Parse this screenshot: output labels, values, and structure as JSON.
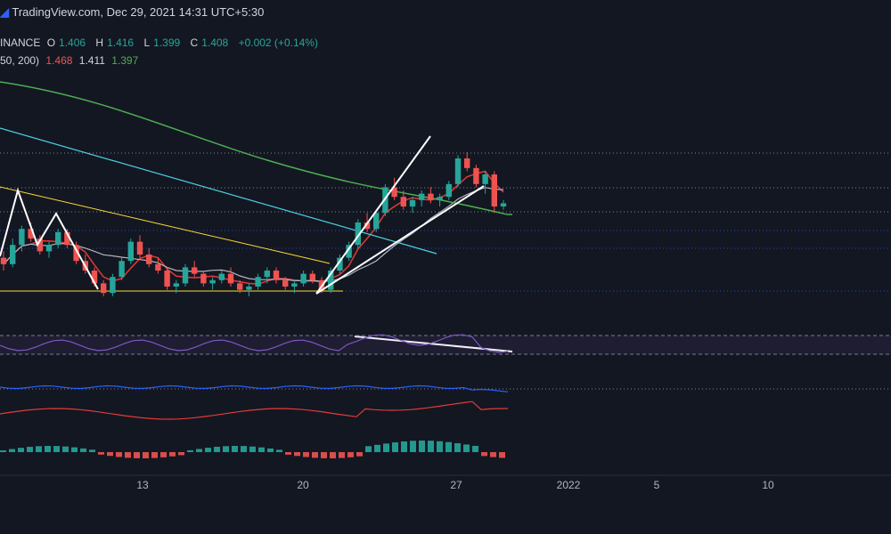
{
  "header": {
    "brand": "TradingView.com,",
    "timestamp": "Dec 29, 2021 14:31 UTC+5:30"
  },
  "legend": {
    "symbol": "INANCE",
    "open_label": "O",
    "open": "1.406",
    "high_label": "H",
    "high": "1.416",
    "low_label": "L",
    "low": "1.399",
    "close_label": "C",
    "close": "1.408",
    "change": "+0.002 (+0.14%)",
    "ma_label": "50, 200)",
    "ma1": "1.468",
    "ma2": "1.411",
    "ma3": "1.397"
  },
  "colors": {
    "bg": "#131722",
    "up": "#26a69a",
    "down": "#ef5350",
    "ma_fast": "#e53935",
    "ma_mid": "#b2b5be",
    "ma_slow": "#4caf50",
    "trend_cyan": "#4dd0e1",
    "trend_yellow": "#fdd835",
    "rsi": "#7e57c2",
    "blue_line": "#2962ff"
  },
  "chart_data": {
    "type": "candlestick",
    "x_ticks": [
      "13",
      "20",
      "27",
      "2022",
      "5",
      "10"
    ],
    "candles": [
      [
        1.24,
        1.26,
        1.2,
        1.22
      ],
      [
        1.22,
        1.3,
        1.21,
        1.28
      ],
      [
        1.28,
        1.34,
        1.26,
        1.33
      ],
      [
        1.33,
        1.35,
        1.29,
        1.3
      ],
      [
        1.3,
        1.31,
        1.25,
        1.26
      ],
      [
        1.26,
        1.29,
        1.24,
        1.28
      ],
      [
        1.28,
        1.33,
        1.27,
        1.32
      ],
      [
        1.32,
        1.33,
        1.27,
        1.28
      ],
      [
        1.28,
        1.29,
        1.22,
        1.23
      ],
      [
        1.23,
        1.25,
        1.19,
        1.2
      ],
      [
        1.2,
        1.21,
        1.15,
        1.16
      ],
      [
        1.16,
        1.17,
        1.12,
        1.13
      ],
      [
        1.13,
        1.19,
        1.12,
        1.18
      ],
      [
        1.18,
        1.24,
        1.17,
        1.23
      ],
      [
        1.23,
        1.3,
        1.22,
        1.29
      ],
      [
        1.29,
        1.31,
        1.24,
        1.25
      ],
      [
        1.25,
        1.27,
        1.21,
        1.22
      ],
      [
        1.22,
        1.24,
        1.19,
        1.2
      ],
      [
        1.2,
        1.21,
        1.14,
        1.15
      ],
      [
        1.15,
        1.17,
        1.13,
        1.16
      ],
      [
        1.16,
        1.22,
        1.15,
        1.21
      ],
      [
        1.21,
        1.23,
        1.18,
        1.19
      ],
      [
        1.19,
        1.2,
        1.15,
        1.16
      ],
      [
        1.16,
        1.18,
        1.14,
        1.17
      ],
      [
        1.17,
        1.2,
        1.16,
        1.19
      ],
      [
        1.19,
        1.21,
        1.15,
        1.16
      ],
      [
        1.16,
        1.17,
        1.13,
        1.14
      ],
      [
        1.14,
        1.16,
        1.12,
        1.15
      ],
      [
        1.15,
        1.19,
        1.14,
        1.18
      ],
      [
        1.18,
        1.21,
        1.16,
        1.2
      ],
      [
        1.2,
        1.21,
        1.16,
        1.17
      ],
      [
        1.17,
        1.18,
        1.14,
        1.15
      ],
      [
        1.15,
        1.17,
        1.13,
        1.16
      ],
      [
        1.16,
        1.2,
        1.15,
        1.19
      ],
      [
        1.19,
        1.2,
        1.16,
        1.17
      ],
      [
        1.17,
        1.18,
        1.13,
        1.14
      ],
      [
        1.14,
        1.21,
        1.13,
        1.2
      ],
      [
        1.2,
        1.25,
        1.19,
        1.24
      ],
      [
        1.24,
        1.29,
        1.23,
        1.28
      ],
      [
        1.28,
        1.36,
        1.27,
        1.35
      ],
      [
        1.35,
        1.38,
        1.32,
        1.33
      ],
      [
        1.33,
        1.39,
        1.32,
        1.38
      ],
      [
        1.38,
        1.47,
        1.37,
        1.46
      ],
      [
        1.46,
        1.49,
        1.42,
        1.43
      ],
      [
        1.43,
        1.45,
        1.39,
        1.4
      ],
      [
        1.4,
        1.43,
        1.38,
        1.42
      ],
      [
        1.42,
        1.45,
        1.4,
        1.44
      ],
      [
        1.44,
        1.46,
        1.41,
        1.42
      ],
      [
        1.42,
        1.44,
        1.4,
        1.43
      ],
      [
        1.43,
        1.48,
        1.42,
        1.47
      ],
      [
        1.47,
        1.56,
        1.46,
        1.55
      ],
      [
        1.55,
        1.57,
        1.51,
        1.52
      ],
      [
        1.52,
        1.53,
        1.46,
        1.47
      ],
      [
        1.47,
        1.51,
        1.44,
        1.5
      ],
      [
        1.5,
        1.51,
        1.38,
        1.4
      ],
      [
        1.4,
        1.42,
        1.39,
        1.41
      ]
    ]
  }
}
